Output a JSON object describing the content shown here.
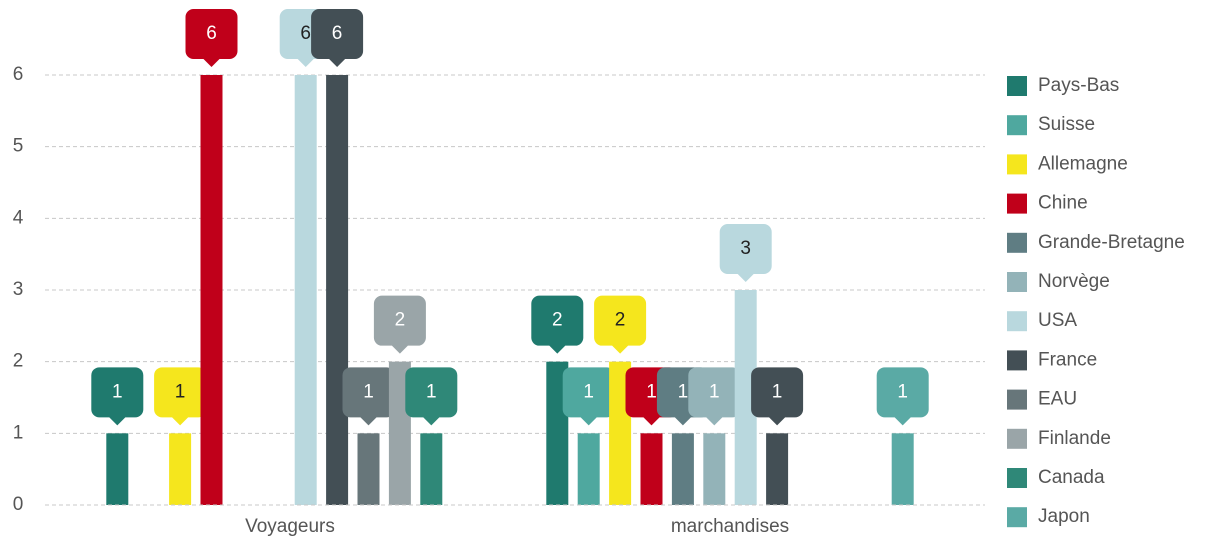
{
  "chart_data": {
    "type": "bar",
    "categories": [
      "Voyageurs",
      "marchandises"
    ],
    "series": [
      {
        "name": "Pays-Bas",
        "color": "#1f7a6e",
        "values": [
          1,
          2
        ]
      },
      {
        "name": "Suisse",
        "color": "#4fa89f",
        "values": [
          null,
          1
        ]
      },
      {
        "name": "Allemagne",
        "color": "#f5e61d",
        "values": [
          1,
          2
        ]
      },
      {
        "name": "Chine",
        "color": "#c0001a",
        "values": [
          6,
          1
        ]
      },
      {
        "name": "Grande-Bretagne",
        "color": "#5f7d83",
        "values": [
          null,
          1
        ]
      },
      {
        "name": "Norvège",
        "color": "#93b3b8",
        "values": [
          null,
          1
        ]
      },
      {
        "name": "USA",
        "color": "#b9d8de",
        "values": [
          6,
          3
        ]
      },
      {
        "name": "France",
        "color": "#434f55",
        "values": [
          6,
          1
        ]
      },
      {
        "name": "EAU",
        "color": "#67767a",
        "values": [
          1,
          null
        ]
      },
      {
        "name": "Finlande",
        "color": "#9aa5a8",
        "values": [
          2,
          null
        ]
      },
      {
        "name": "Canada",
        "color": "#2f8878",
        "values": [
          1,
          null
        ]
      },
      {
        "name": "Japon",
        "color": "#5aaaa5",
        "values": [
          null,
          1
        ]
      }
    ],
    "ylim": [
      0,
      6
    ],
    "yticks": [
      0,
      1,
      2,
      3,
      4,
      5,
      6
    ],
    "grid": true,
    "legend": "right"
  }
}
